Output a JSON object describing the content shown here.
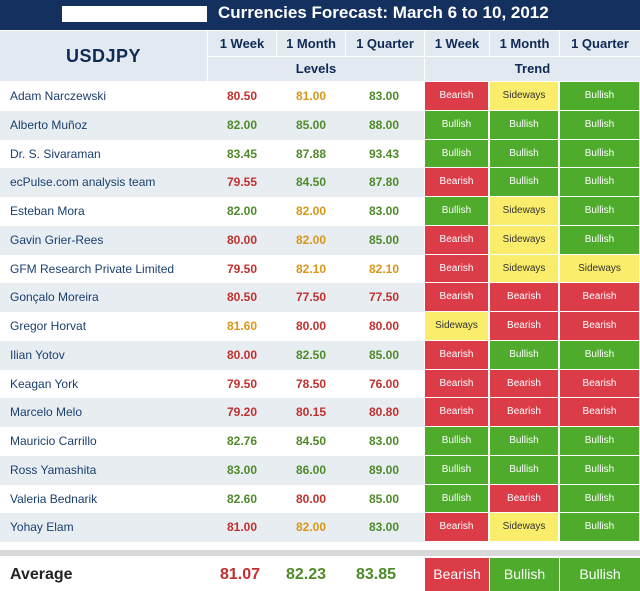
{
  "title": "Currencies Forecast: March 6 to 10, 2012",
  "pair": "USDJPY",
  "headers": {
    "week": "1 Week",
    "month": "1 Month",
    "quarter": "1 Quarter",
    "levels": "Levels",
    "trend": "Trend"
  },
  "colors": {
    "header_bg": "#14305e",
    "bearish": "#dc3c48",
    "bullish": "#4eab2c",
    "sideways": "#f9ed6b",
    "value_red": "#c0302e",
    "value_green": "#4e8a2a",
    "value_orange": "#d8961a"
  },
  "rows": [
    {
      "name": "Adam Narczewski",
      "levels": [
        "80.50",
        "81.00",
        "83.00"
      ],
      "level_colors": [
        "red",
        "orange",
        "green"
      ],
      "trend": [
        "Bearish",
        "Sideways",
        "Bullish"
      ]
    },
    {
      "name": "Alberto Muñoz",
      "levels": [
        "82.00",
        "85.00",
        "88.00"
      ],
      "level_colors": [
        "green",
        "green",
        "green"
      ],
      "trend": [
        "Bullish",
        "Bullish",
        "Bullish"
      ]
    },
    {
      "name": "Dr. S. Sivaraman",
      "levels": [
        "83.45",
        "87.88",
        "93.43"
      ],
      "level_colors": [
        "green",
        "green",
        "green"
      ],
      "trend": [
        "Bullish",
        "Bullish",
        "Bullish"
      ]
    },
    {
      "name": "ecPulse.com analysis team",
      "levels": [
        "79.55",
        "84.50",
        "87.80"
      ],
      "level_colors": [
        "red",
        "green",
        "green"
      ],
      "trend": [
        "Bearish",
        "Bullish",
        "Bullish"
      ]
    },
    {
      "name": "Esteban Mora",
      "levels": [
        "82.00",
        "82.00",
        "83.00"
      ],
      "level_colors": [
        "green",
        "orange",
        "green"
      ],
      "trend": [
        "Bullish",
        "Sideways",
        "Bullish"
      ]
    },
    {
      "name": "Gavin Grier-Rees",
      "levels": [
        "80.00",
        "82.00",
        "85.00"
      ],
      "level_colors": [
        "red",
        "orange",
        "green"
      ],
      "trend": [
        "Bearish",
        "Sideways",
        "Bullish"
      ]
    },
    {
      "name": "GFM Research Private Limited",
      "levels": [
        "79.50",
        "82.10",
        "82.10"
      ],
      "level_colors": [
        "red",
        "orange",
        "orange"
      ],
      "trend": [
        "Bearish",
        "Sideways",
        "Sideways"
      ]
    },
    {
      "name": "Gonçalo Moreira",
      "levels": [
        "80.50",
        "77.50",
        "77.50"
      ],
      "level_colors": [
        "red",
        "red",
        "red"
      ],
      "trend": [
        "Bearish",
        "Bearish",
        "Bearish"
      ]
    },
    {
      "name": "Gregor Horvat",
      "levels": [
        "81.60",
        "80.00",
        "80.00"
      ],
      "level_colors": [
        "orange",
        "red",
        "red"
      ],
      "trend": [
        "Sideways",
        "Bearish",
        "Bearish"
      ]
    },
    {
      "name": "Ilian Yotov",
      "levels": [
        "80.00",
        "82.50",
        "85.00"
      ],
      "level_colors": [
        "red",
        "green",
        "green"
      ],
      "trend": [
        "Bearish",
        "Bullish",
        "Bullish"
      ]
    },
    {
      "name": "Keagan York",
      "levels": [
        "79.50",
        "78.50",
        "76.00"
      ],
      "level_colors": [
        "red",
        "red",
        "red"
      ],
      "trend": [
        "Bearish",
        "Bearish",
        "Bearish"
      ]
    },
    {
      "name": "Marcelo Melo",
      "levels": [
        "79.20",
        "80.15",
        "80.80"
      ],
      "level_colors": [
        "red",
        "red",
        "red"
      ],
      "trend": [
        "Bearish",
        "Bearish",
        "Bearish"
      ]
    },
    {
      "name": "Mauricio Carrillo",
      "levels": [
        "82.76",
        "84.50",
        "83.00"
      ],
      "level_colors": [
        "green",
        "green",
        "green"
      ],
      "trend": [
        "Bullish",
        "Bullish",
        "Bullish"
      ]
    },
    {
      "name": "Ross Yamashita",
      "levels": [
        "83.00",
        "86.00",
        "89.00"
      ],
      "level_colors": [
        "green",
        "green",
        "green"
      ],
      "trend": [
        "Bullish",
        "Bullish",
        "Bullish"
      ]
    },
    {
      "name": "Valeria Bednarik",
      "levels": [
        "82.60",
        "80.00",
        "85.00"
      ],
      "level_colors": [
        "green",
        "red",
        "green"
      ],
      "trend": [
        "Bullish",
        "Bearish",
        "Bullish"
      ]
    },
    {
      "name": "Yohay Elam",
      "levels": [
        "81.00",
        "82.00",
        "83.00"
      ],
      "level_colors": [
        "red",
        "orange",
        "green"
      ],
      "trend": [
        "Bearish",
        "Sideways",
        "Bullish"
      ]
    }
  ],
  "average": {
    "label": "Average",
    "levels": [
      "81.07",
      "82.23",
      "83.85"
    ],
    "level_colors": [
      "red",
      "green",
      "green"
    ],
    "trend": [
      "Bearish",
      "Bullish",
      "Bullish"
    ]
  }
}
